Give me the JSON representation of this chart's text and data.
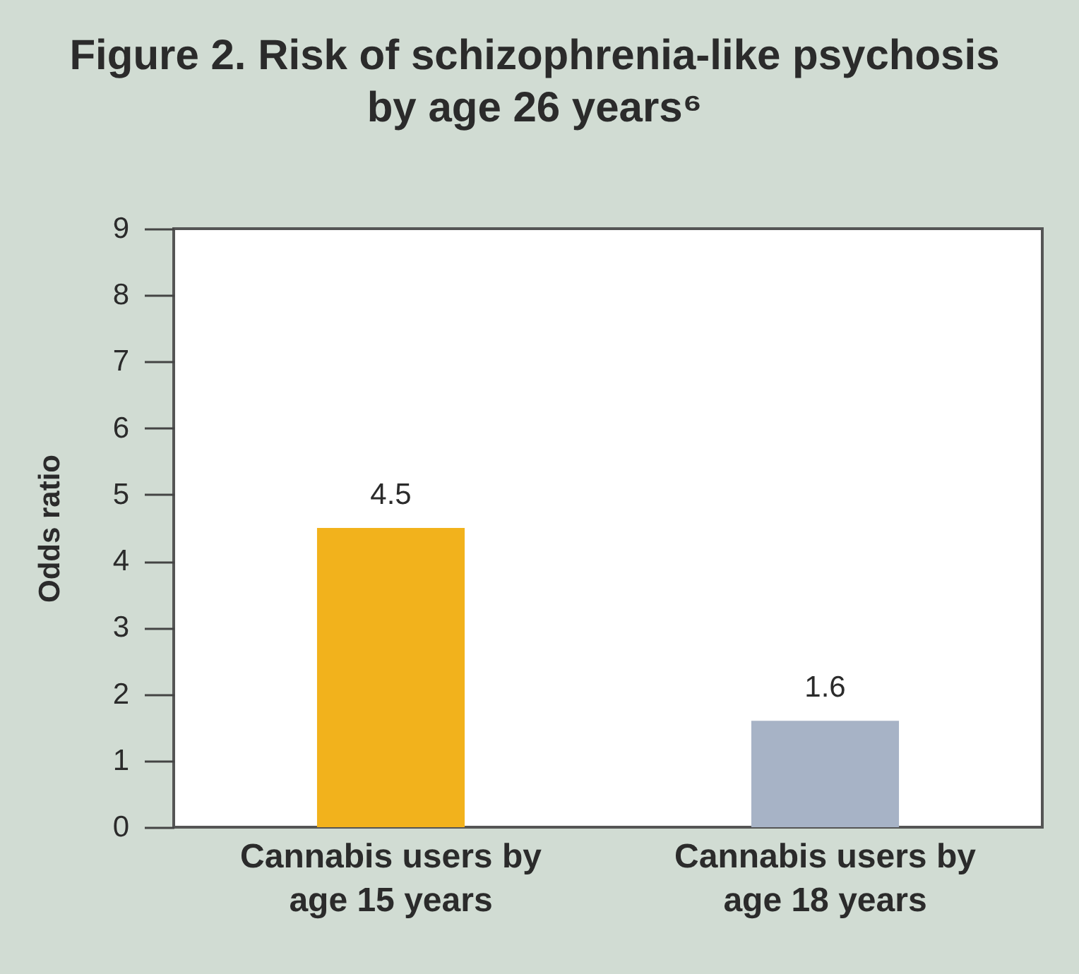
{
  "chart_data": {
    "type": "bar",
    "title": "Figure 2. Risk of schizophrenia-like psychosis by age 26 years⁶",
    "ylabel": "Odds ratio",
    "categories": [
      "Cannabis users by age 15 years",
      "Cannabis users by age 18 years"
    ],
    "values": [
      4.5,
      1.6
    ],
    "colors": [
      "#f2b21c",
      "#a7b3c6"
    ],
    "ylim": [
      0,
      9
    ],
    "yticks": [
      0,
      1,
      2,
      3,
      4,
      5,
      6,
      7,
      8,
      9
    ],
    "data_labels": true
  }
}
